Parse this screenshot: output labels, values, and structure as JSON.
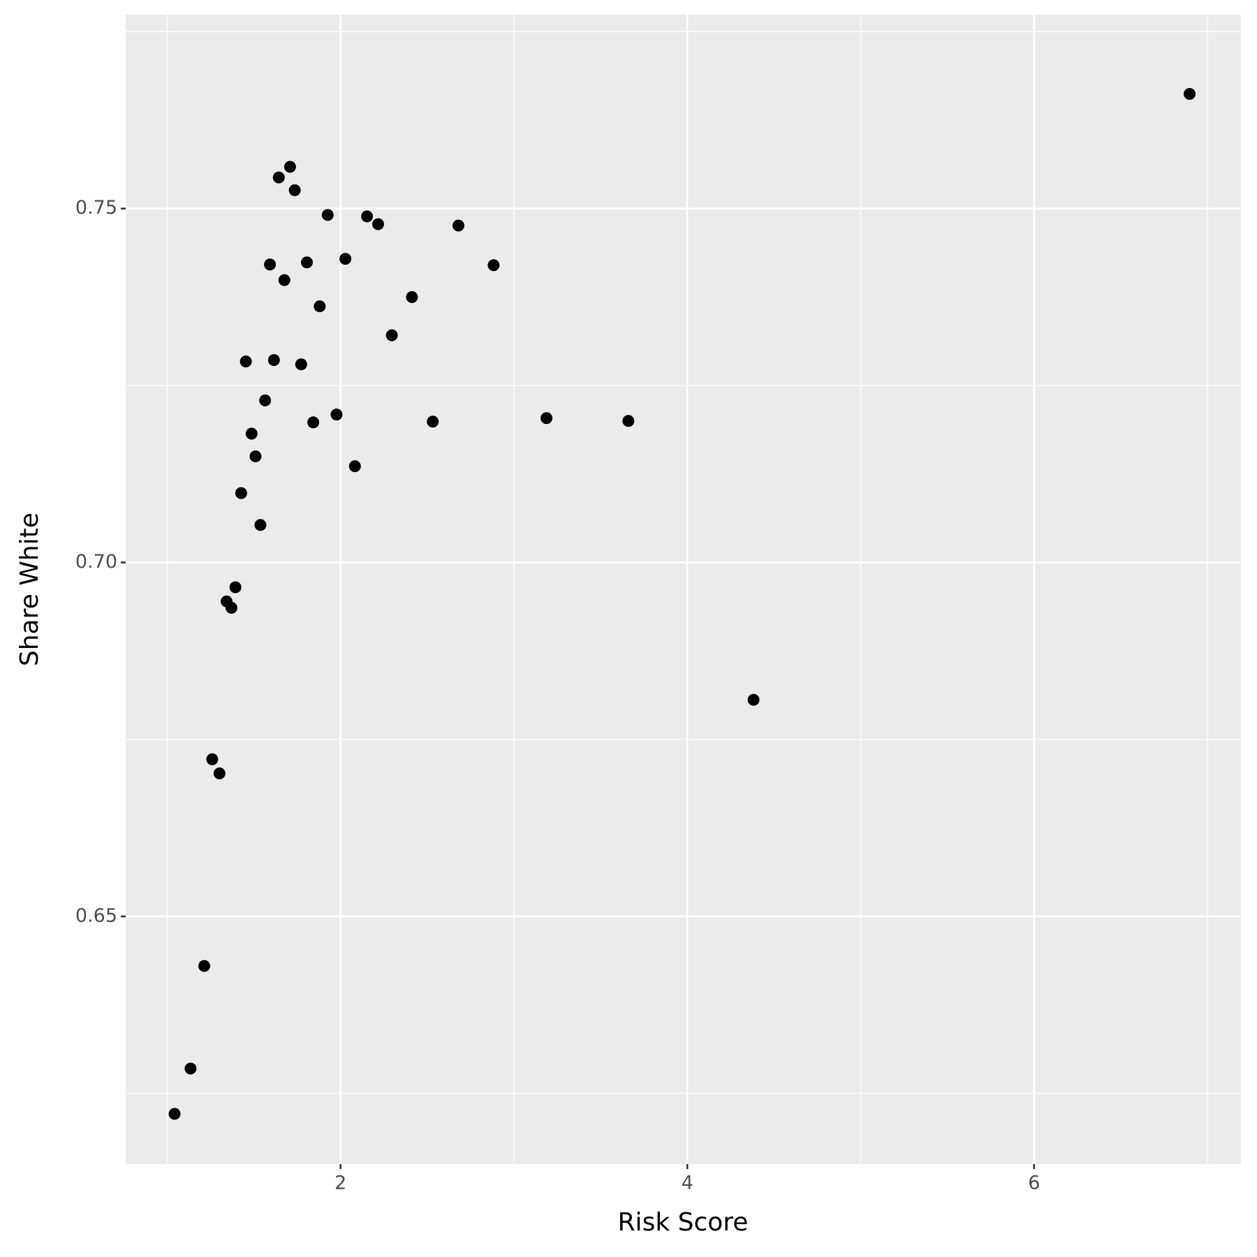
{
  "chart_data": {
    "type": "scatter",
    "x_label": "Risk Score",
    "y_label": "Share White",
    "xlim": [
      0.761,
      7.193
    ],
    "ylim": [
      0.615,
      0.7774
    ],
    "xticks": [
      2,
      4,
      6
    ],
    "yticks": [
      0.65,
      {
        "value": 0.7,
        "label": "0.70"
      },
      0.75
    ],
    "x_minor_grid": [
      1,
      3,
      5,
      7
    ],
    "y_minor_grid": [
      0.625,
      0.675,
      0.725,
      0.775
    ],
    "grid": true,
    "color": "#000000",
    "series": [
      {
        "name": "points",
        "color": "#000000",
        "x": [
          6.897,
          1.709,
          1.644,
          1.736,
          1.926,
          2.153,
          2.217,
          2.68,
          1.593,
          1.806,
          2.028,
          2.883,
          1.676,
          2.412,
          1.88,
          2.296,
          1.454,
          1.616,
          1.773,
          1.565,
          1.977,
          1.843,
          2.532,
          3.188,
          3.66,
          1.487,
          1.51,
          2.083,
          1.427,
          1.538,
          1.394,
          1.343,
          1.371,
          4.382,
          1.26,
          1.302,
          1.214,
          1.135,
          1.043
        ],
        "values": [
          0.7662,
          0.7559,
          0.7544,
          0.7526,
          0.7491,
          0.7489,
          0.7478,
          0.7476,
          0.7421,
          0.7424,
          0.7429,
          0.742,
          0.7399,
          0.7375,
          0.7362,
          0.7321,
          0.7284,
          0.7286,
          0.728,
          0.7229,
          0.7209,
          0.7198,
          0.7199,
          0.7204,
          0.72,
          0.7182,
          0.715,
          0.7136,
          0.7098,
          0.7053,
          0.6965,
          0.6945,
          0.6936,
          0.6806,
          0.6722,
          0.6702,
          0.643,
          0.6285,
          0.6221
        ]
      }
    ]
  }
}
